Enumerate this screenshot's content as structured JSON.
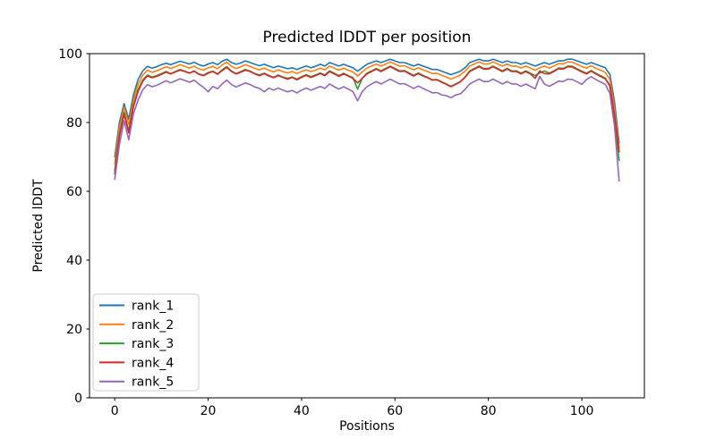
{
  "figure": {
    "background": "#ffffff",
    "frame_color": "#000000",
    "text_color": "#000000"
  },
  "chart_data": {
    "type": "line",
    "title": "Predicted lDDT per position",
    "xlabel": "Positions",
    "ylabel": "Predicted lDDT",
    "xlim": [
      -5.4,
      113.4
    ],
    "ylim": [
      0,
      100
    ],
    "x_ticks": [
      0,
      20,
      40,
      60,
      80,
      100
    ],
    "y_ticks": [
      0,
      20,
      40,
      60,
      80,
      100
    ],
    "grid": false,
    "legend_position": "lower left",
    "legend_border_color": "#cccccc",
    "x": [
      0,
      1,
      2,
      3,
      4,
      5,
      6,
      7,
      8,
      9,
      10,
      11,
      12,
      13,
      14,
      15,
      16,
      17,
      18,
      19,
      20,
      21,
      22,
      23,
      24,
      25,
      26,
      27,
      28,
      29,
      30,
      31,
      32,
      33,
      34,
      35,
      36,
      37,
      38,
      39,
      40,
      41,
      42,
      43,
      44,
      45,
      46,
      47,
      48,
      49,
      50,
      51,
      52,
      53,
      54,
      55,
      56,
      57,
      58,
      59,
      60,
      61,
      62,
      63,
      64,
      65,
      66,
      67,
      68,
      69,
      70,
      71,
      72,
      73,
      74,
      75,
      76,
      77,
      78,
      79,
      80,
      81,
      82,
      83,
      84,
      85,
      86,
      87,
      88,
      89,
      90,
      91,
      92,
      93,
      94,
      95,
      96,
      97,
      98,
      99,
      100,
      101,
      102,
      103,
      104,
      105,
      106,
      107,
      108
    ],
    "series": [
      {
        "name": "rank_1",
        "color": "#1f77b4",
        "values": [
          70,
          80,
          85.5,
          81,
          88,
          92.5,
          95,
          96.3,
          95.8,
          96.2,
          96.8,
          97.2,
          96.8,
          97.3,
          97.8,
          97.4,
          97,
          97.5,
          96.8,
          96.4,
          97,
          97.4,
          96.8,
          97.8,
          98.4,
          97.4,
          96.9,
          97.3,
          97.9,
          97.4,
          96.9,
          96.5,
          96.9,
          96.4,
          95.9,
          96.4,
          96,
          95.6,
          95.9,
          95.4,
          95.9,
          96.4,
          95.9,
          96.3,
          96.9,
          96.4,
          97.4,
          96.9,
          96.4,
          96.9,
          96.4,
          95.9,
          94.9,
          95.9,
          96.9,
          97.4,
          97.9,
          97.4,
          97.9,
          98.4,
          97.9,
          97.4,
          97.4,
          96.9,
          96.4,
          96.9,
          96.4,
          95.9,
          95.4,
          95.4,
          94.9,
          94.4,
          93.9,
          94.4,
          94.9,
          95.9,
          97.4,
          97.9,
          98.4,
          97.9,
          97.9,
          98.4,
          97.9,
          97.4,
          97.9,
          97.4,
          97.4,
          96.9,
          97.4,
          96.9,
          96.4,
          96.9,
          97.4,
          96.9,
          97.4,
          97.9,
          97.9,
          98.4,
          98.4,
          97.9,
          97.4,
          96.9,
          97.4,
          96.9,
          96.4,
          95.9,
          94,
          86,
          74
        ]
      },
      {
        "name": "rank_2",
        "color": "#ff7f0e",
        "values": [
          68,
          78.5,
          84.5,
          79.5,
          86.5,
          91,
          93.8,
          95.2,
          94.6,
          95,
          95.6,
          96.2,
          95.7,
          96.2,
          96.8,
          96.3,
          95.8,
          96.4,
          95.6,
          95.2,
          95.9,
          96.3,
          95.6,
          96.7,
          97.5,
          96.3,
          95.7,
          96.2,
          96.8,
          96.3,
          95.7,
          95.3,
          95.8,
          95.2,
          94.7,
          95.3,
          94.8,
          94.4,
          94.8,
          94.2,
          94.8,
          95.3,
          94.8,
          95.2,
          95.8,
          95.3,
          96.4,
          95.8,
          95.2,
          95.8,
          95.2,
          94.7,
          93.5,
          94.7,
          95.8,
          96.4,
          97,
          96.4,
          97,
          97.6,
          97,
          96.4,
          96.5,
          95.9,
          95.3,
          95.9,
          95.3,
          94.8,
          94.2,
          94.3,
          93.7,
          93.2,
          92.6,
          93.2,
          93.8,
          94.9,
          96.4,
          97,
          97.6,
          97,
          97,
          97.6,
          97,
          96.4,
          97,
          96.4,
          96.4,
          95.8,
          96.4,
          95.8,
          95.2,
          95.9,
          96.4,
          95.8,
          96.4,
          97.1,
          97,
          97.6,
          97.5,
          96.9,
          96.3,
          95.8,
          96.5,
          95.8,
          95.2,
          94.6,
          92.5,
          84,
          72.5
        ]
      },
      {
        "name": "rank_3",
        "color": "#2ca02c",
        "values": [
          66,
          76.5,
          83,
          77.5,
          85,
          89.5,
          92.3,
          93.8,
          93.2,
          93.6,
          94.2,
          94.8,
          94.2,
          94.8,
          95.4,
          94.9,
          94.4,
          95,
          94.1,
          93.7,
          94.5,
          94.9,
          94.1,
          95.3,
          96.2,
          94.9,
          94.2,
          94.8,
          95.4,
          94.9,
          94.2,
          93.8,
          94.3,
          93.7,
          93.1,
          93.8,
          93.2,
          92.8,
          93.2,
          92.6,
          93.3,
          93.9,
          93.3,
          93.8,
          94.4,
          93.8,
          95,
          94.3,
          93.6,
          94.3,
          93.6,
          93,
          89.7,
          92.9,
          94.3,
          95,
          95.7,
          95,
          95.7,
          96.4,
          95.7,
          95,
          95.1,
          94.4,
          93.7,
          94.4,
          93.7,
          93.1,
          92.4,
          92.5,
          91.8,
          91.2,
          90.5,
          91.2,
          91.9,
          93.2,
          95,
          95.7,
          96.4,
          95.7,
          95.7,
          96.4,
          95.7,
          95,
          95.7,
          95,
          95,
          94.3,
          95,
          94.3,
          93.6,
          94.4,
          95,
          94.3,
          95,
          95.8,
          95.7,
          96.4,
          96.3,
          95.6,
          94.9,
          94.3,
          95.1,
          94.3,
          93.6,
          92.9,
          90.5,
          81,
          69
        ]
      },
      {
        "name": "rank_4",
        "color": "#d62728",
        "values": [
          65,
          76,
          82.5,
          77,
          84.5,
          89,
          92,
          93.5,
          93,
          93.4,
          94,
          94.6,
          94.1,
          94.7,
          95.2,
          94.8,
          94.3,
          94.9,
          94,
          93.6,
          94.3,
          94.8,
          94,
          95.1,
          96,
          94.8,
          94.1,
          94.6,
          95.2,
          94.8,
          94.1,
          93.6,
          94.2,
          93.5,
          93,
          93.6,
          93.1,
          92.6,
          93.1,
          92.4,
          93.1,
          93.7,
          93.1,
          93.6,
          94.2,
          93.6,
          94.8,
          94.1,
          93.4,
          94.1,
          93.5,
          92.8,
          91.5,
          92.8,
          94.1,
          94.8,
          95.5,
          94.8,
          95.5,
          96.2,
          95.5,
          94.8,
          94.9,
          94.2,
          93.5,
          94.2,
          93.5,
          93,
          92.3,
          92.4,
          91.7,
          91.1,
          90.4,
          91.1,
          91.8,
          93.1,
          94.8,
          95.5,
          96.2,
          95.5,
          95.5,
          96.2,
          95.5,
          94.8,
          95.5,
          94.8,
          94.8,
          94.1,
          94.8,
          94.1,
          92.8,
          95,
          94.2,
          94.1,
          94.8,
          95.6,
          95.5,
          96.2,
          96.1,
          95.4,
          94.7,
          94.1,
          94.9,
          94.1,
          93.4,
          92.7,
          90.8,
          82,
          71.5
        ]
      },
      {
        "name": "rank_5",
        "color": "#9467bd",
        "values": [
          63.5,
          73.5,
          80.5,
          75,
          82.5,
          86.5,
          89.5,
          91,
          90.4,
          90.8,
          91.5,
          92.1,
          91.5,
          92.1,
          92.7,
          92.2,
          91.7,
          92.3,
          91.2,
          90.2,
          88.9,
          90.5,
          89.8,
          91.2,
          92.3,
          91,
          90.3,
          90.9,
          91.5,
          91,
          90.3,
          89.9,
          88.9,
          90,
          89.4,
          90,
          89.4,
          88.9,
          89.3,
          88.6,
          89.4,
          90,
          89.4,
          89.9,
          90.5,
          89.9,
          91.2,
          90.4,
          89.7,
          90.4,
          89.7,
          89,
          86.3,
          89,
          90.4,
          91.2,
          91.9,
          91.2,
          91.9,
          92.6,
          91.9,
          91.2,
          91.3,
          90.6,
          89.9,
          90.6,
          89.9,
          89.3,
          88.6,
          88.7,
          88,
          87.8,
          87.2,
          88,
          88.3,
          89.6,
          91.2,
          91.9,
          92.6,
          91.9,
          91.9,
          92.6,
          91.9,
          91.2,
          91.9,
          91.2,
          91.2,
          90.5,
          91.2,
          90.5,
          89.8,
          93.4,
          91.2,
          90.5,
          91.2,
          92,
          91.9,
          92.6,
          92.5,
          91.8,
          91.1,
          92.5,
          93.3,
          92.5,
          91.8,
          91.1,
          88.5,
          79,
          63
        ]
      }
    ]
  }
}
